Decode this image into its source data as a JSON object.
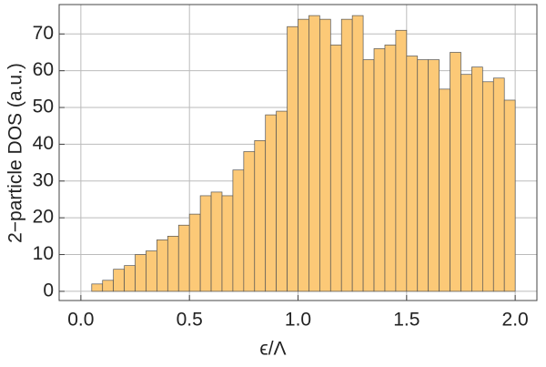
{
  "chart_data": {
    "type": "histogram",
    "xlabel": "ϵ/Λ",
    "ylabel": "2−particle DOS (a.u.)",
    "bins": [
      0.05,
      0.1,
      0.15,
      0.2,
      0.25,
      0.3,
      0.35,
      0.4,
      0.45,
      0.5,
      0.55,
      0.6,
      0.65,
      0.7,
      0.75,
      0.8,
      0.85,
      0.9,
      0.95,
      1.0,
      1.05,
      1.1,
      1.15,
      1.2,
      1.25,
      1.3,
      1.35,
      1.4,
      1.45,
      1.5,
      1.55,
      1.6,
      1.65,
      1.7,
      1.75,
      1.8,
      1.85,
      1.9,
      1.95,
      2.0
    ],
    "values": [
      2,
      3,
      6,
      7,
      10,
      11,
      14,
      15,
      18,
      21,
      26,
      27,
      26,
      33,
      38,
      41,
      48,
      49,
      72,
      74,
      75,
      74,
      67,
      74,
      75,
      63,
      66,
      67,
      71,
      64,
      63,
      63,
      55,
      65,
      59,
      61,
      57,
      58,
      52
    ],
    "color": "#fcc977",
    "xlim": [
      -0.1,
      2.1
    ],
    "ylim": [
      -2.5,
      78
    ],
    "xticks": [
      {
        "value": 0,
        "label": "0.0"
      },
      0.5,
      {
        "value": 1,
        "label": "1.0"
      },
      1.5,
      {
        "value": 2,
        "label": "2.0"
      }
    ],
    "yticks": [
      0,
      10,
      20,
      30,
      40,
      50,
      60,
      70
    ],
    "grid": true
  }
}
